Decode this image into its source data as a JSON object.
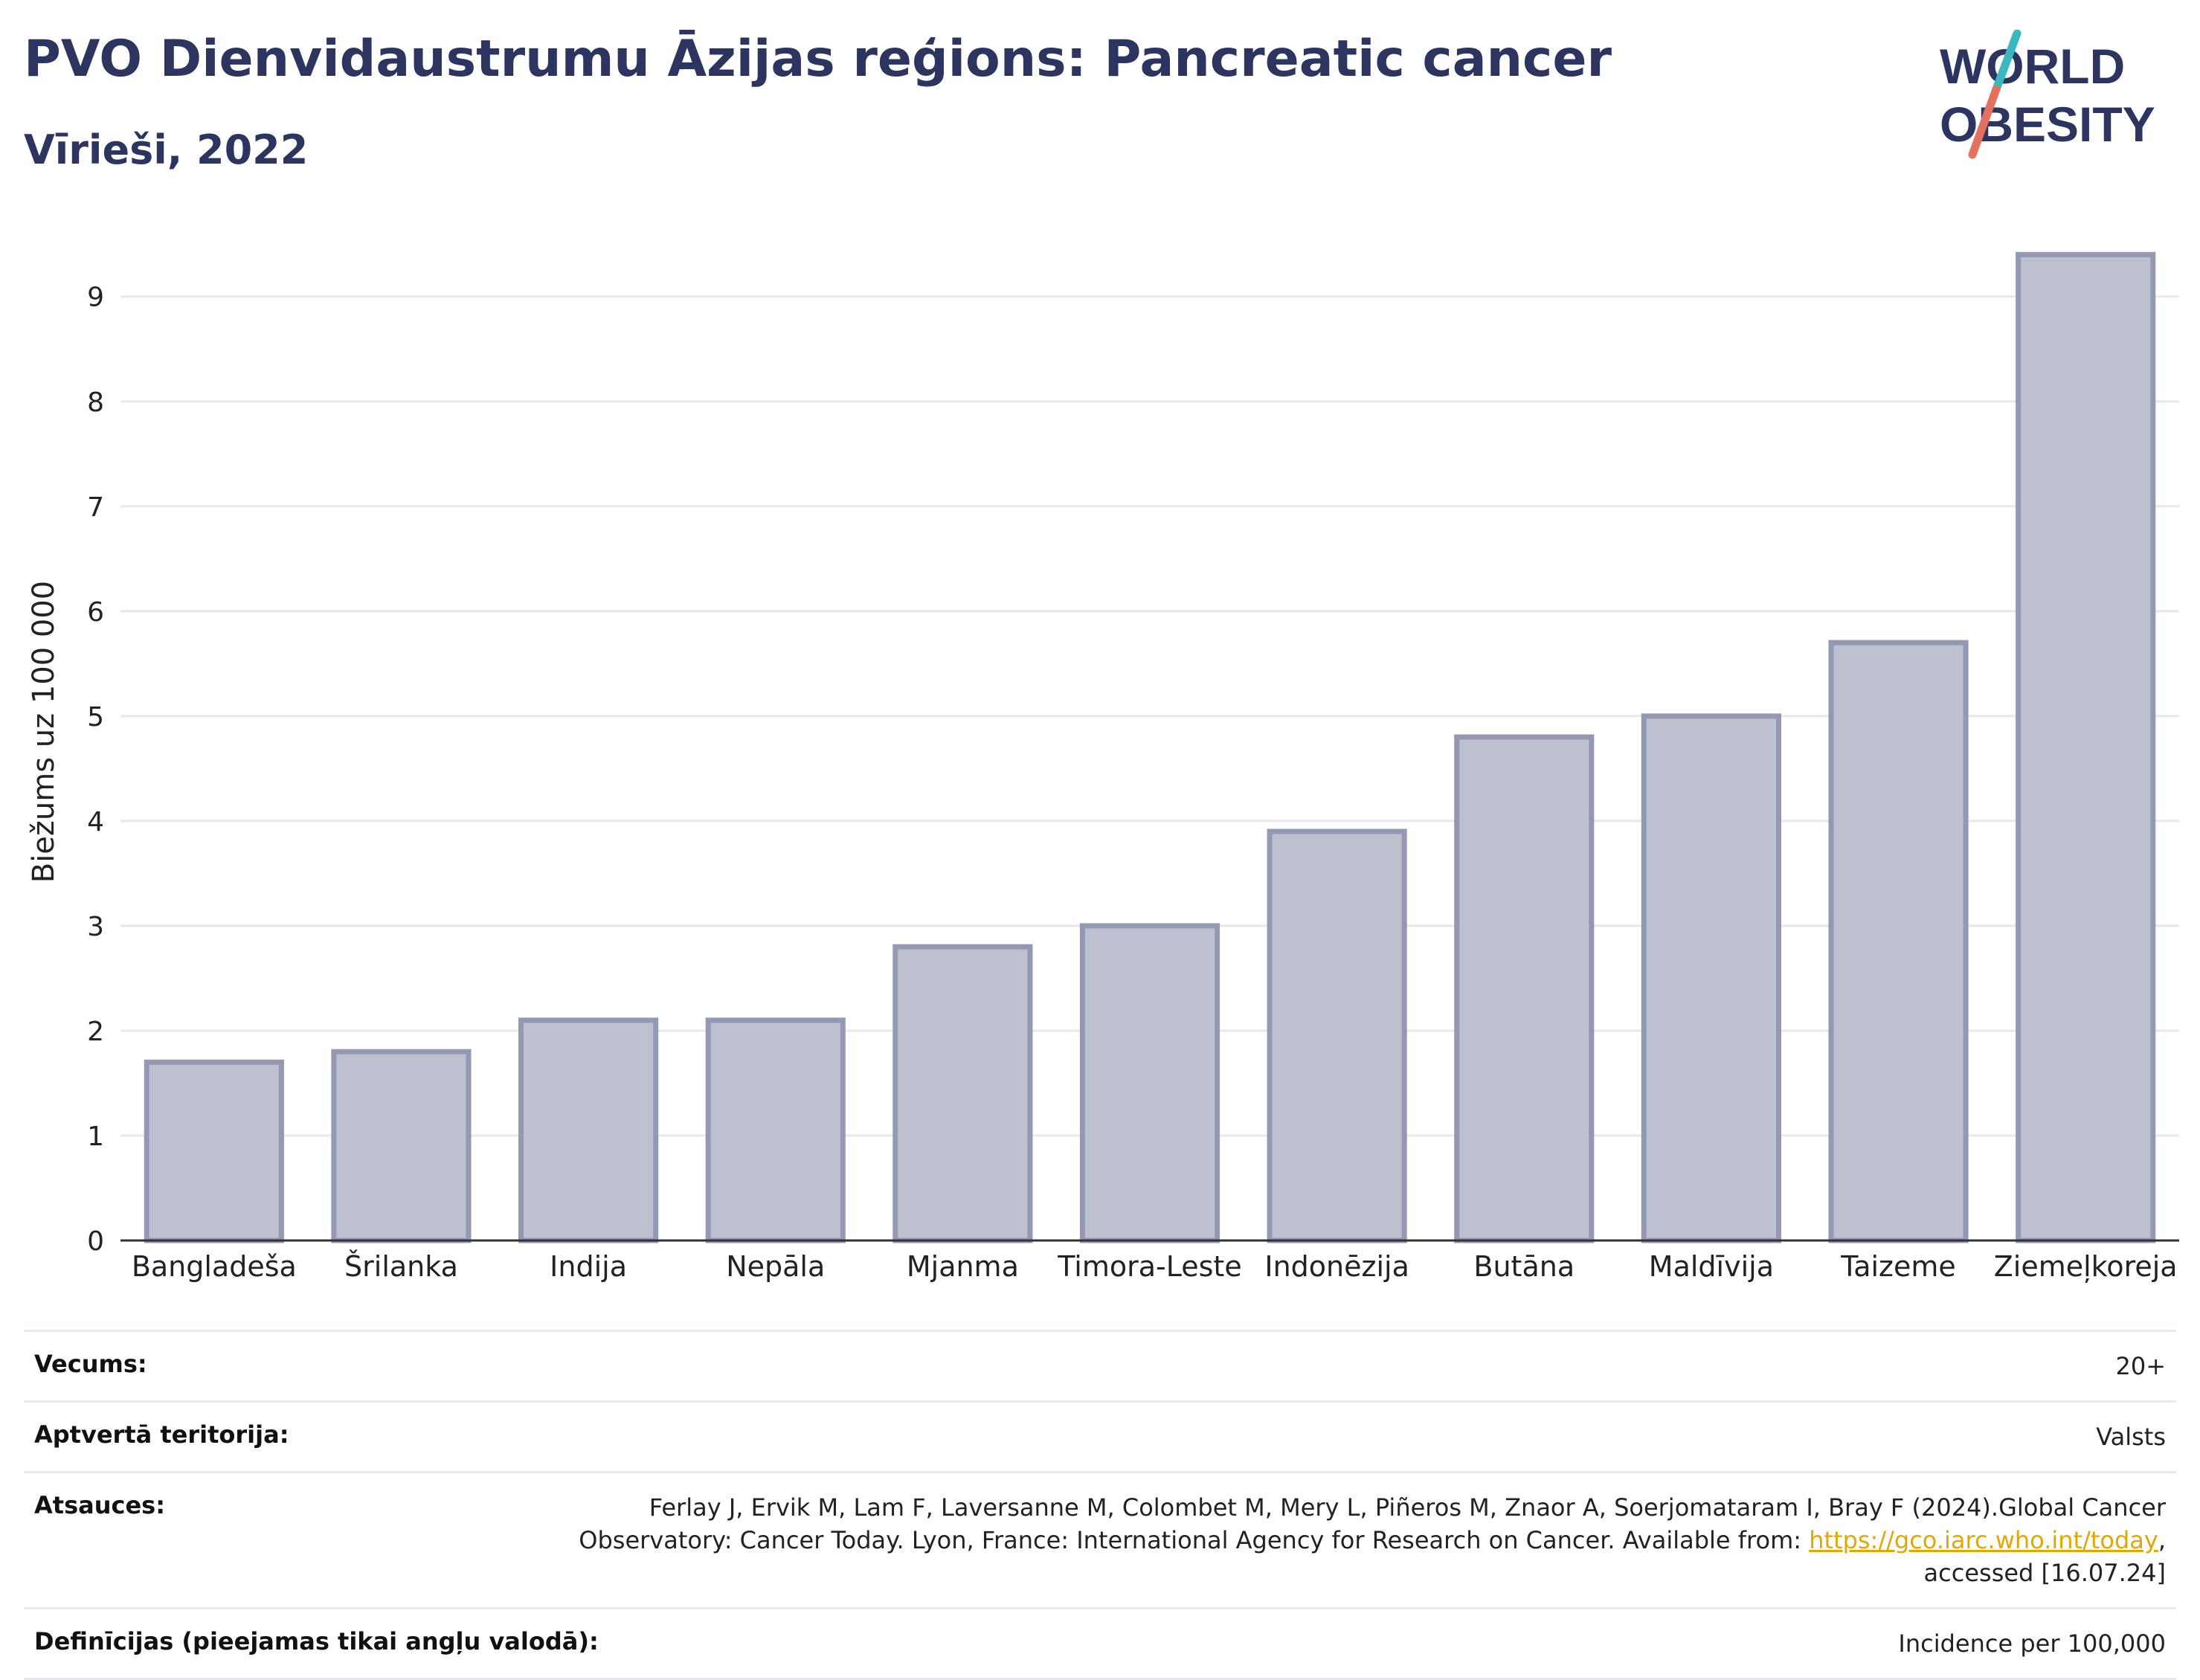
{
  "header": {
    "title": "PVO Dienvidaustrumu Āzijas reģions: Pancreatic cancer",
    "subtitle": "Vīrieši, 2022"
  },
  "logo": {
    "line1": "WORLD",
    "line2": "OBESITY",
    "colors": {
      "text": "#2b3560",
      "slash_top": "#3ab7bf",
      "slash_bottom": "#e4705f"
    }
  },
  "chart_data": {
    "type": "bar",
    "categories": [
      "Bangladeša",
      "Šrilanka",
      "Indija",
      "Nepāla",
      "Mjanma",
      "Timora-Leste",
      "Indonēzija",
      "Butāna",
      "Maldīvija",
      "Taizeme",
      "Ziemeļkoreja"
    ],
    "values": [
      1.7,
      1.8,
      2.1,
      2.1,
      2.8,
      3.0,
      3.9,
      4.8,
      5.0,
      5.7,
      9.4
    ],
    "ylabel": "Biežums uz 100 000",
    "xlabel": "",
    "ylim": [
      0,
      9.7
    ],
    "yticks": [
      0,
      1,
      2,
      3,
      4,
      5,
      6,
      7,
      8,
      9
    ],
    "grid": true,
    "colors": {
      "bar_fill": "#bcc0cf",
      "bar_stroke": "#9499b3"
    }
  },
  "meta": {
    "rows": [
      {
        "label": "Vecums:",
        "value": "20+"
      },
      {
        "label": "Aptvertā teritorija:",
        "value": "Valsts"
      },
      {
        "label": "Atsauces:",
        "value_line1": "Ferlay J, Ervik M, Lam F, Laversanne M, Colombet M, Mery L, Piñeros M, Znaor A, Soerjomataram I, Bray F (2024).Global Cancer",
        "value_line2_prefix": "Observatory: Cancer Today. Lyon, France: International Agency for Research on Cancer. Available from: ",
        "link": "https://gco.iarc.who.int/today",
        "value_line2_suffix": ",",
        "value_line3": "accessed [16.07.24]"
      },
      {
        "label": "Definīcijas (pieejamas tikai angļu valodā):",
        "value": "Incidence per 100,000"
      }
    ]
  }
}
